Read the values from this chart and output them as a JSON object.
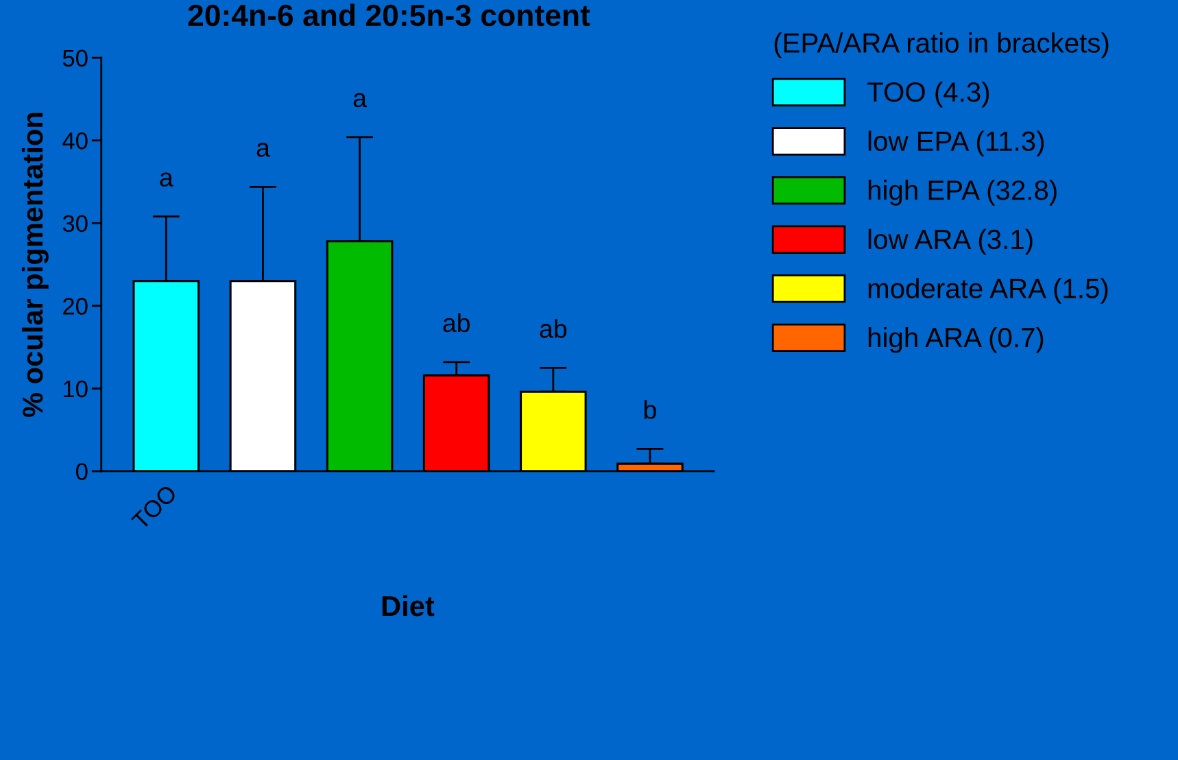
{
  "chart_data": {
    "type": "bar",
    "title": "20:4n-6 and 20:5n-3 content",
    "xlabel": "Diet",
    "ylabel": "% ocular pigmentation",
    "legend_title": "(EPA/ARA ratio in brackets)",
    "annotations": [
      "a",
      "a",
      "a",
      "ab",
      "ab",
      "b"
    ],
    "categories": [
      "TOO",
      null,
      null,
      null,
      null,
      null
    ],
    "series": [
      {
        "name": "TOO (4.3)",
        "color": "#00ffff",
        "values": [
          23.0,
          null,
          null,
          null,
          null,
          null
        ],
        "errors": [
          7.8,
          null,
          null,
          null,
          null,
          null
        ]
      },
      {
        "name": "low EPA (11.3)",
        "color": "#ffffff",
        "values": [
          null,
          23.0,
          null,
          null,
          null,
          null
        ],
        "errors": [
          null,
          11.4,
          null,
          null,
          null,
          null
        ]
      },
      {
        "name": "high EPA (32.8)",
        "color": "#00bb00",
        "values": [
          null,
          null,
          27.8,
          null,
          null,
          null
        ],
        "errors": [
          null,
          null,
          12.6,
          null,
          null,
          null
        ]
      },
      {
        "name": "low ARA (3.1)",
        "color": "#ff0000",
        "values": [
          null,
          null,
          null,
          11.6,
          null,
          null
        ],
        "errors": [
          null,
          null,
          null,
          1.6,
          null,
          null
        ]
      },
      {
        "name": "moderate ARA (1.5)",
        "color": "#ffff00",
        "values": [
          null,
          null,
          null,
          null,
          9.6,
          null
        ],
        "errors": [
          null,
          null,
          null,
          null,
          2.9,
          null
        ]
      },
      {
        "name": "high ARA (0.7)",
        "color": "#ff6600",
        "values": [
          null,
          null,
          null,
          null,
          null,
          0.9
        ],
        "errors": [
          null,
          null,
          null,
          null,
          null,
          1.8
        ]
      }
    ],
    "ylim": [
      0,
      50
    ],
    "yticks": [
      0,
      10,
      20,
      30,
      40,
      50
    ],
    "grid": false,
    "legend": "right"
  }
}
